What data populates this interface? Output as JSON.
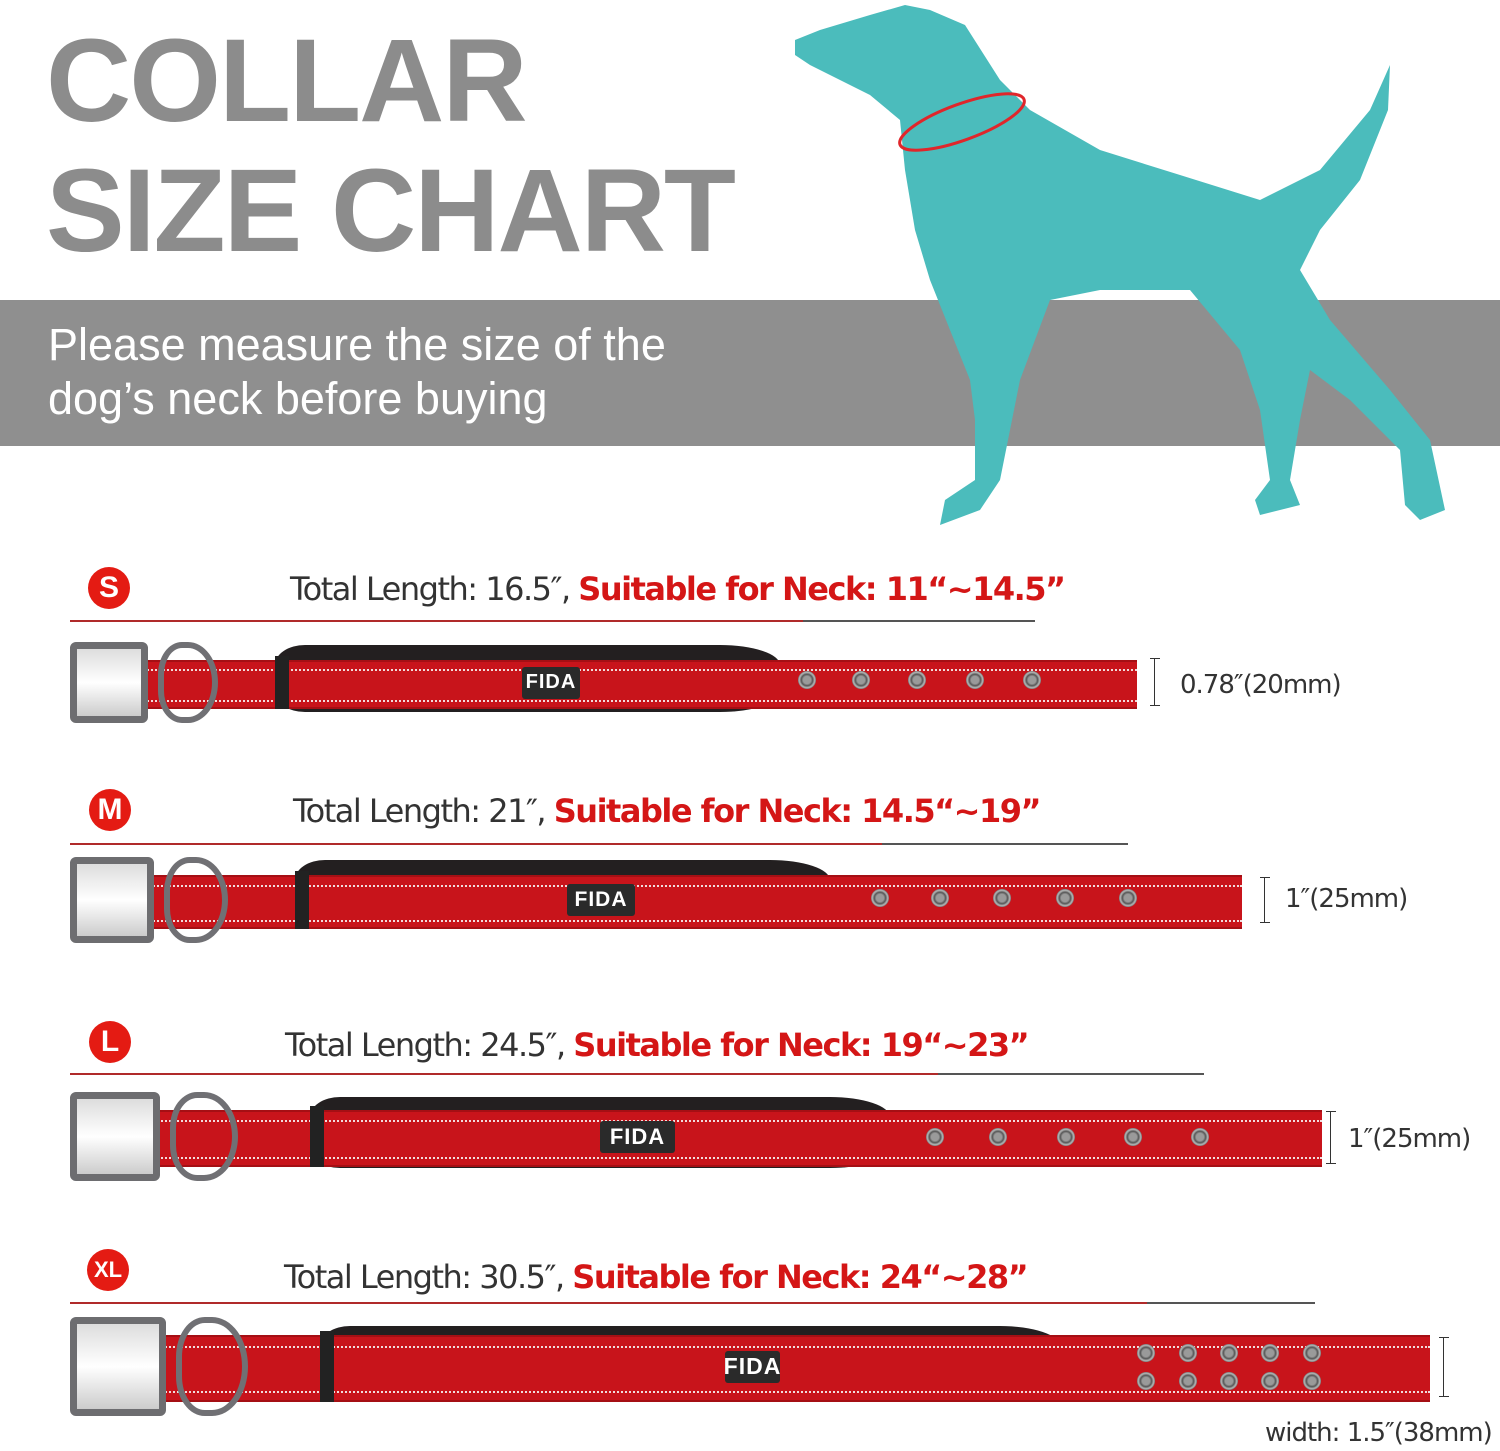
{
  "header": {
    "title_line1": "COLLAR",
    "title_line2": "SIZE CHART",
    "instruction_line1": "Please measure the size of the",
    "instruction_line2": "dog’s neck before buying"
  },
  "colors": {
    "title_gray": "#8c8c8c",
    "band_gray": "#8f8f8f",
    "dog_teal": "#4bbcbc",
    "collar_red": "#c8141b",
    "accent_red": "#e41b13"
  },
  "brand": "FIDA",
  "sizes": [
    {
      "size": "S",
      "total_length": "Total Length: 16.5″, ",
      "neck": "Suitable for Neck: 11“~14.5”",
      "width": "0.78″(20mm)",
      "rivet_rows": 1,
      "rivets_per_row": 5
    },
    {
      "size": "M",
      "total_length": "Total Length: 21″, ",
      "neck": "Suitable for Neck: 14.5“~19”",
      "width": "1″(25mm)",
      "rivet_rows": 1,
      "rivets_per_row": 5
    },
    {
      "size": "L",
      "total_length": "Total Length: 24.5″, ",
      "neck": "Suitable for Neck: 19“~23”",
      "width": "1″(25mm)",
      "rivet_rows": 1,
      "rivets_per_row": 5
    },
    {
      "size": "XL",
      "total_length": "Total Length: 30.5″, ",
      "neck": "Suitable for Neck: 24“~28”",
      "width": "width: 1.5″(38mm)",
      "rivet_rows": 2,
      "rivets_per_row": 5
    }
  ]
}
